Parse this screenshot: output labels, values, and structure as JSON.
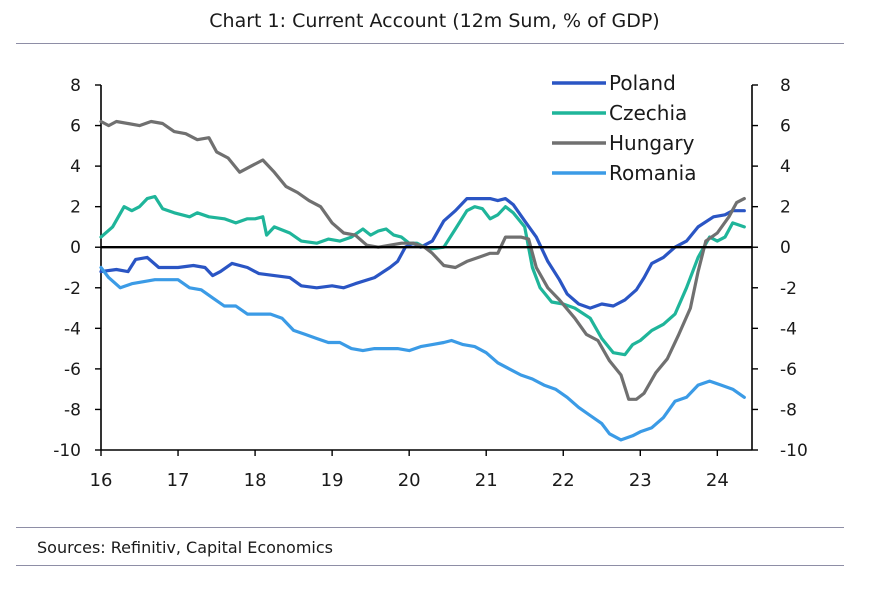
{
  "title": "Chart 1: Current Account (12m Sum, % of GDP)",
  "sources": "Sources: Refinitiv, Capital Economics",
  "chart_data": {
    "type": "line",
    "xlim": [
      16,
      24.45
    ],
    "ylim": [
      -10,
      8
    ],
    "x_ticks": [
      16,
      17,
      18,
      19,
      20,
      21,
      22,
      23,
      24
    ],
    "x_tick_labels": [
      "16",
      "17",
      "18",
      "19",
      "20",
      "21",
      "22",
      "23",
      "24"
    ],
    "y_ticks": [
      8,
      6,
      4,
      2,
      0,
      -2,
      -4,
      -6,
      -8,
      -10
    ],
    "y_tick_labels": [
      "8",
      "6",
      "4",
      "2",
      "0",
      "-2",
      "-4",
      "-6",
      "-8",
      "-10"
    ],
    "right_axis": true,
    "grid": false,
    "zero_line": true,
    "legend_position": "top-right",
    "series": [
      {
        "name": "Poland",
        "color": "#2a55c4",
        "points": [
          [
            16.0,
            -1.2
          ],
          [
            16.2,
            -1.1
          ],
          [
            16.35,
            -1.2
          ],
          [
            16.45,
            -0.6
          ],
          [
            16.6,
            -0.5
          ],
          [
            16.75,
            -1.0
          ],
          [
            17.0,
            -1.0
          ],
          [
            17.2,
            -0.9
          ],
          [
            17.35,
            -1.0
          ],
          [
            17.45,
            -1.4
          ],
          [
            17.55,
            -1.2
          ],
          [
            17.7,
            -0.8
          ],
          [
            17.9,
            -1.0
          ],
          [
            18.05,
            -1.3
          ],
          [
            18.25,
            -1.4
          ],
          [
            18.45,
            -1.5
          ],
          [
            18.6,
            -1.9
          ],
          [
            18.8,
            -2.0
          ],
          [
            19.0,
            -1.9
          ],
          [
            19.15,
            -2.0
          ],
          [
            19.3,
            -1.8
          ],
          [
            19.55,
            -1.5
          ],
          [
            19.75,
            -1.0
          ],
          [
            19.85,
            -0.7
          ],
          [
            19.95,
            0.0
          ],
          [
            20.05,
            0.2
          ],
          [
            20.15,
            0.0
          ],
          [
            20.3,
            0.3
          ],
          [
            20.45,
            1.3
          ],
          [
            20.6,
            1.8
          ],
          [
            20.75,
            2.4
          ],
          [
            20.9,
            2.4
          ],
          [
            21.05,
            2.4
          ],
          [
            21.15,
            2.3
          ],
          [
            21.25,
            2.4
          ],
          [
            21.35,
            2.1
          ],
          [
            21.5,
            1.3
          ],
          [
            21.65,
            0.5
          ],
          [
            21.8,
            -0.7
          ],
          [
            21.95,
            -1.6
          ],
          [
            22.05,
            -2.3
          ],
          [
            22.2,
            -2.8
          ],
          [
            22.35,
            -3.0
          ],
          [
            22.5,
            -2.8
          ],
          [
            22.65,
            -2.9
          ],
          [
            22.8,
            -2.6
          ],
          [
            22.95,
            -2.1
          ],
          [
            23.05,
            -1.5
          ],
          [
            23.15,
            -0.8
          ],
          [
            23.3,
            -0.5
          ],
          [
            23.45,
            0.0
          ],
          [
            23.6,
            0.3
          ],
          [
            23.75,
            1.0
          ],
          [
            23.95,
            1.5
          ],
          [
            24.1,
            1.6
          ],
          [
            24.2,
            1.8
          ],
          [
            24.35,
            1.8
          ]
        ]
      },
      {
        "name": "Czechia",
        "color": "#1fb59a",
        "points": [
          [
            16.0,
            0.5
          ],
          [
            16.15,
            1.0
          ],
          [
            16.3,
            2.0
          ],
          [
            16.4,
            1.8
          ],
          [
            16.5,
            2.0
          ],
          [
            16.6,
            2.4
          ],
          [
            16.7,
            2.5
          ],
          [
            16.8,
            1.9
          ],
          [
            16.95,
            1.7
          ],
          [
            17.15,
            1.5
          ],
          [
            17.25,
            1.7
          ],
          [
            17.4,
            1.5
          ],
          [
            17.6,
            1.4
          ],
          [
            17.75,
            1.2
          ],
          [
            17.9,
            1.4
          ],
          [
            18.0,
            1.4
          ],
          [
            18.1,
            1.5
          ],
          [
            18.15,
            0.6
          ],
          [
            18.25,
            1.0
          ],
          [
            18.45,
            0.7
          ],
          [
            18.6,
            0.3
          ],
          [
            18.8,
            0.2
          ],
          [
            18.95,
            0.4
          ],
          [
            19.1,
            0.3
          ],
          [
            19.25,
            0.5
          ],
          [
            19.4,
            0.9
          ],
          [
            19.5,
            0.6
          ],
          [
            19.6,
            0.8
          ],
          [
            19.7,
            0.9
          ],
          [
            19.8,
            0.6
          ],
          [
            19.9,
            0.5
          ],
          [
            20.0,
            0.2
          ],
          [
            20.1,
            0.2
          ],
          [
            20.25,
            -0.1
          ],
          [
            20.45,
            0.0
          ],
          [
            20.6,
            0.9
          ],
          [
            20.75,
            1.8
          ],
          [
            20.85,
            2.0
          ],
          [
            20.95,
            1.9
          ],
          [
            21.05,
            1.4
          ],
          [
            21.15,
            1.6
          ],
          [
            21.25,
            2.0
          ],
          [
            21.35,
            1.7
          ],
          [
            21.5,
            1.0
          ],
          [
            21.6,
            -1.0
          ],
          [
            21.7,
            -2.0
          ],
          [
            21.85,
            -2.7
          ],
          [
            22.0,
            -2.8
          ],
          [
            22.15,
            -3.0
          ],
          [
            22.35,
            -3.5
          ],
          [
            22.5,
            -4.5
          ],
          [
            22.65,
            -5.2
          ],
          [
            22.8,
            -5.3
          ],
          [
            22.9,
            -4.8
          ],
          [
            23.0,
            -4.6
          ],
          [
            23.15,
            -4.1
          ],
          [
            23.3,
            -3.8
          ],
          [
            23.45,
            -3.3
          ],
          [
            23.6,
            -2.0
          ],
          [
            23.75,
            -0.5
          ],
          [
            23.9,
            0.5
          ],
          [
            24.0,
            0.3
          ],
          [
            24.1,
            0.5
          ],
          [
            24.2,
            1.2
          ],
          [
            24.35,
            1.0
          ]
        ]
      },
      {
        "name": "Hungary",
        "color": "#707070",
        "points": [
          [
            16.0,
            6.2
          ],
          [
            16.1,
            6.0
          ],
          [
            16.2,
            6.2
          ],
          [
            16.35,
            6.1
          ],
          [
            16.5,
            6.0
          ],
          [
            16.65,
            6.2
          ],
          [
            16.8,
            6.1
          ],
          [
            16.95,
            5.7
          ],
          [
            17.1,
            5.6
          ],
          [
            17.25,
            5.3
          ],
          [
            17.4,
            5.4
          ],
          [
            17.5,
            4.7
          ],
          [
            17.65,
            4.4
          ],
          [
            17.8,
            3.7
          ],
          [
            17.95,
            4.0
          ],
          [
            18.1,
            4.3
          ],
          [
            18.25,
            3.7
          ],
          [
            18.4,
            3.0
          ],
          [
            18.55,
            2.7
          ],
          [
            18.7,
            2.3
          ],
          [
            18.85,
            2.0
          ],
          [
            19.0,
            1.2
          ],
          [
            19.15,
            0.7
          ],
          [
            19.3,
            0.6
          ],
          [
            19.45,
            0.1
          ],
          [
            19.6,
            0.0
          ],
          [
            19.75,
            0.1
          ],
          [
            19.9,
            0.2
          ],
          [
            20.05,
            0.2
          ],
          [
            20.2,
            0.0
          ],
          [
            20.3,
            -0.3
          ],
          [
            20.45,
            -0.9
          ],
          [
            20.6,
            -1.0
          ],
          [
            20.75,
            -0.7
          ],
          [
            20.9,
            -0.5
          ],
          [
            21.05,
            -0.3
          ],
          [
            21.15,
            -0.3
          ],
          [
            21.25,
            0.5
          ],
          [
            21.45,
            0.5
          ],
          [
            21.55,
            0.4
          ],
          [
            21.65,
            -1.0
          ],
          [
            21.8,
            -2.0
          ],
          [
            21.95,
            -2.6
          ],
          [
            22.15,
            -3.5
          ],
          [
            22.3,
            -4.3
          ],
          [
            22.45,
            -4.6
          ],
          [
            22.6,
            -5.6
          ],
          [
            22.75,
            -6.3
          ],
          [
            22.85,
            -7.5
          ],
          [
            22.95,
            -7.5
          ],
          [
            23.05,
            -7.2
          ],
          [
            23.2,
            -6.2
          ],
          [
            23.35,
            -5.5
          ],
          [
            23.5,
            -4.3
          ],
          [
            23.65,
            -3.0
          ],
          [
            23.75,
            -1.2
          ],
          [
            23.85,
            0.3
          ],
          [
            24.0,
            0.7
          ],
          [
            24.15,
            1.5
          ],
          [
            24.25,
            2.2
          ],
          [
            24.35,
            2.4
          ]
        ]
      },
      {
        "name": "Romania",
        "color": "#3b9be6",
        "points": [
          [
            16.0,
            -1.0
          ],
          [
            16.1,
            -1.5
          ],
          [
            16.25,
            -2.0
          ],
          [
            16.4,
            -1.8
          ],
          [
            16.55,
            -1.7
          ],
          [
            16.7,
            -1.6
          ],
          [
            16.85,
            -1.6
          ],
          [
            17.0,
            -1.6
          ],
          [
            17.15,
            -2.0
          ],
          [
            17.3,
            -2.1
          ],
          [
            17.45,
            -2.5
          ],
          [
            17.6,
            -2.9
          ],
          [
            17.75,
            -2.9
          ],
          [
            17.9,
            -3.3
          ],
          [
            18.05,
            -3.3
          ],
          [
            18.2,
            -3.3
          ],
          [
            18.35,
            -3.5
          ],
          [
            18.5,
            -4.1
          ],
          [
            18.65,
            -4.3
          ],
          [
            18.8,
            -4.5
          ],
          [
            18.95,
            -4.7
          ],
          [
            19.1,
            -4.7
          ],
          [
            19.25,
            -5.0
          ],
          [
            19.4,
            -5.1
          ],
          [
            19.55,
            -5.0
          ],
          [
            19.7,
            -5.0
          ],
          [
            19.85,
            -5.0
          ],
          [
            20.0,
            -5.1
          ],
          [
            20.15,
            -4.9
          ],
          [
            20.3,
            -4.8
          ],
          [
            20.45,
            -4.7
          ],
          [
            20.55,
            -4.6
          ],
          [
            20.7,
            -4.8
          ],
          [
            20.85,
            -4.9
          ],
          [
            21.0,
            -5.2
          ],
          [
            21.15,
            -5.7
          ],
          [
            21.3,
            -6.0
          ],
          [
            21.45,
            -6.3
          ],
          [
            21.6,
            -6.5
          ],
          [
            21.75,
            -6.8
          ],
          [
            21.9,
            -7.0
          ],
          [
            22.05,
            -7.4
          ],
          [
            22.2,
            -7.9
          ],
          [
            22.35,
            -8.3
          ],
          [
            22.5,
            -8.7
          ],
          [
            22.6,
            -9.2
          ],
          [
            22.75,
            -9.5
          ],
          [
            22.9,
            -9.3
          ],
          [
            23.0,
            -9.1
          ],
          [
            23.15,
            -8.9
          ],
          [
            23.3,
            -8.4
          ],
          [
            23.45,
            -7.6
          ],
          [
            23.6,
            -7.4
          ],
          [
            23.75,
            -6.8
          ],
          [
            23.9,
            -6.6
          ],
          [
            24.05,
            -6.8
          ],
          [
            24.2,
            -7.0
          ],
          [
            24.35,
            -7.4
          ]
        ]
      }
    ]
  }
}
